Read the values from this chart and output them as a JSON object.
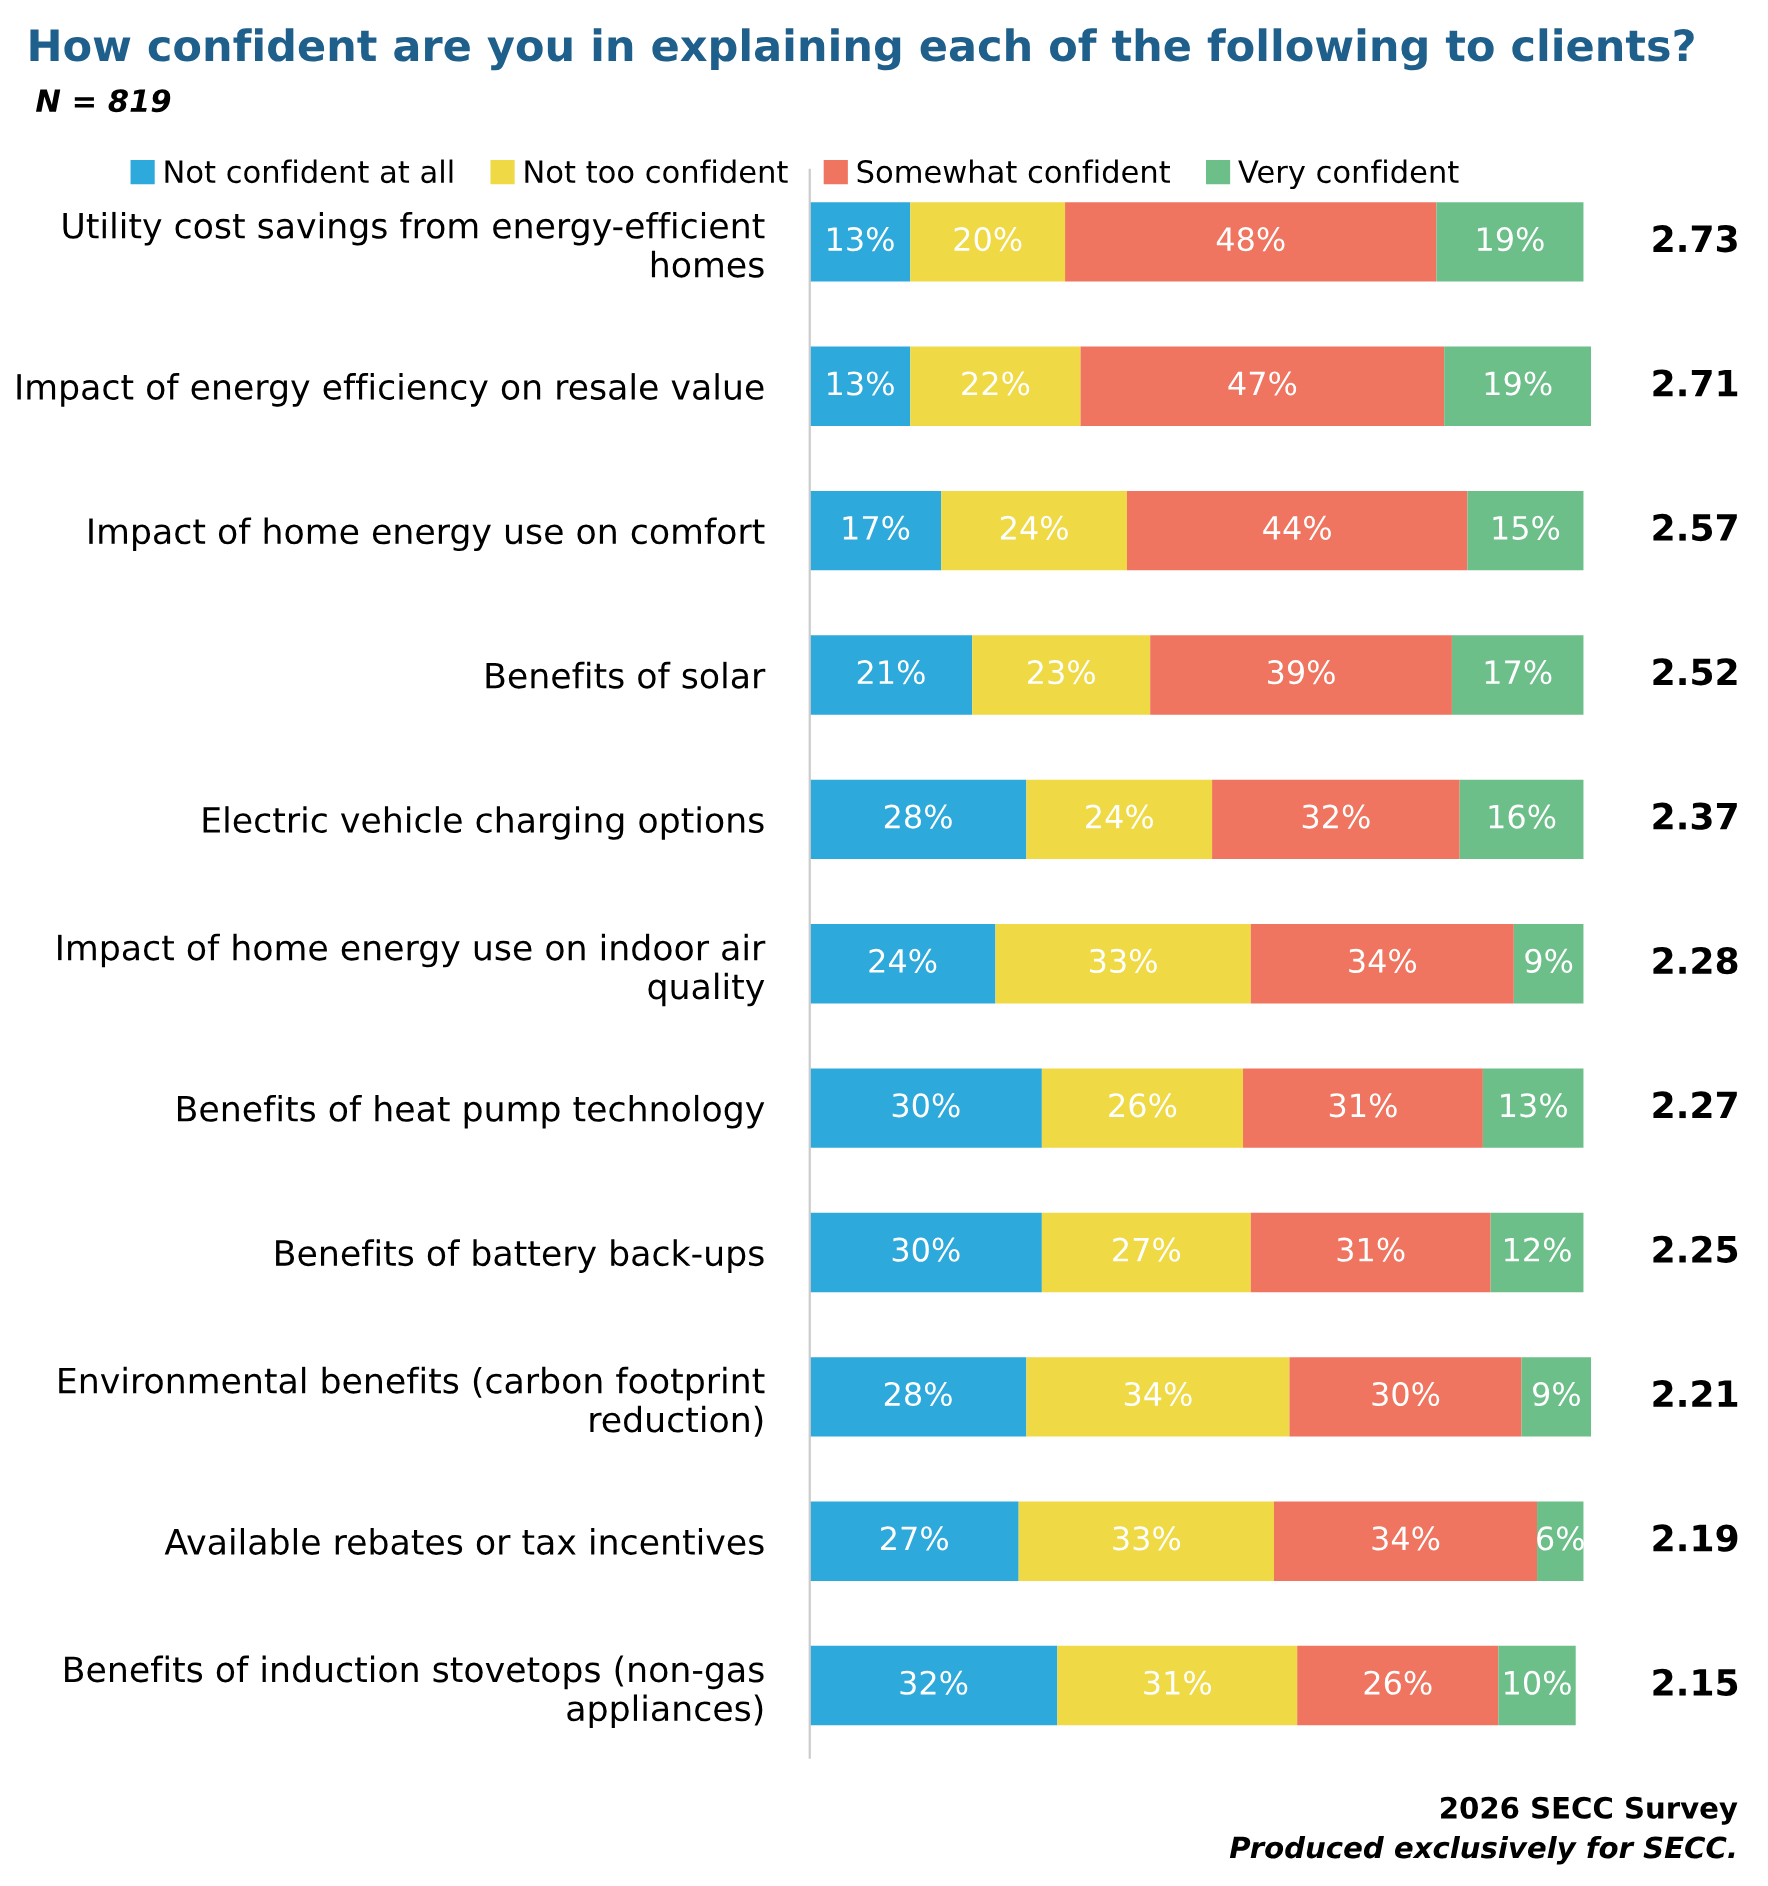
{
  "chart_data": {
    "type": "bar",
    "orientation": "horizontal",
    "stacked": true,
    "legend": "top",
    "grid": false,
    "title": "How confident are you in explaining each of the following to clients?",
    "subtitle": "N = 819",
    "categories": [
      "Utility cost savings from energy-efficient\nhomes",
      "Impact of energy efficiency on resale value",
      "Impact of home energy use on comfort",
      "Benefits of solar",
      "Electric vehicle charging options",
      "Impact of home energy use on indoor air\nquality",
      "Benefits of heat pump technology",
      "Benefits of battery back-ups",
      "Environmental benefits (carbon footprint\nreduction)",
      "Available rebates or tax incentives",
      "Benefits of induction stovetops (non-gas\nappliances)"
    ],
    "series": [
      {
        "name": "Not confident at all",
        "color": "#2ea9dc",
        "values": [
          13,
          13,
          17,
          21,
          28,
          24,
          30,
          30,
          28,
          27,
          32
        ],
        "value_labels": [
          "13%",
          "13%",
          "17%",
          "21%",
          "28%",
          "24%",
          "30%",
          "30%",
          "28%",
          "27%",
          "32%"
        ]
      },
      {
        "name": "Not too confident",
        "color": "#efd944",
        "values": [
          20,
          22,
          24,
          23,
          24,
          33,
          26,
          27,
          34,
          33,
          31
        ],
        "value_labels": [
          "20%",
          "22%",
          "24%",
          "23%",
          "24%",
          "33%",
          "26%",
          "27%",
          "34%",
          "33%",
          "31%"
        ]
      },
      {
        "name": "Somewhat confident",
        "color": "#f07560",
        "values": [
          48,
          47,
          44,
          39,
          32,
          34,
          31,
          31,
          30,
          34,
          26
        ],
        "value_labels": [
          "48%",
          "47%",
          "44%",
          "39%",
          "32%",
          "34%",
          "31%",
          "31%",
          "30%",
          "34%",
          "26%"
        ]
      },
      {
        "name": "Very confident",
        "color": "#6dbf8a",
        "values": [
          19,
          19,
          15,
          17,
          16,
          9,
          13,
          12,
          9,
          6,
          10
        ],
        "value_labels": [
          "19%",
          "19%",
          "15%",
          "17%",
          "16%",
          "9%",
          "13%",
          "12%",
          "9%",
          "6%",
          "10%"
        ]
      }
    ],
    "annotations": [
      "2.73",
      "2.71",
      "2.57",
      "2.52",
      "2.37",
      "2.28",
      "2.27",
      "2.25",
      "2.21",
      "2.19",
      "2.15",
      "2026 SECC Survey",
      "Produced exclusively for SECC."
    ]
  }
}
